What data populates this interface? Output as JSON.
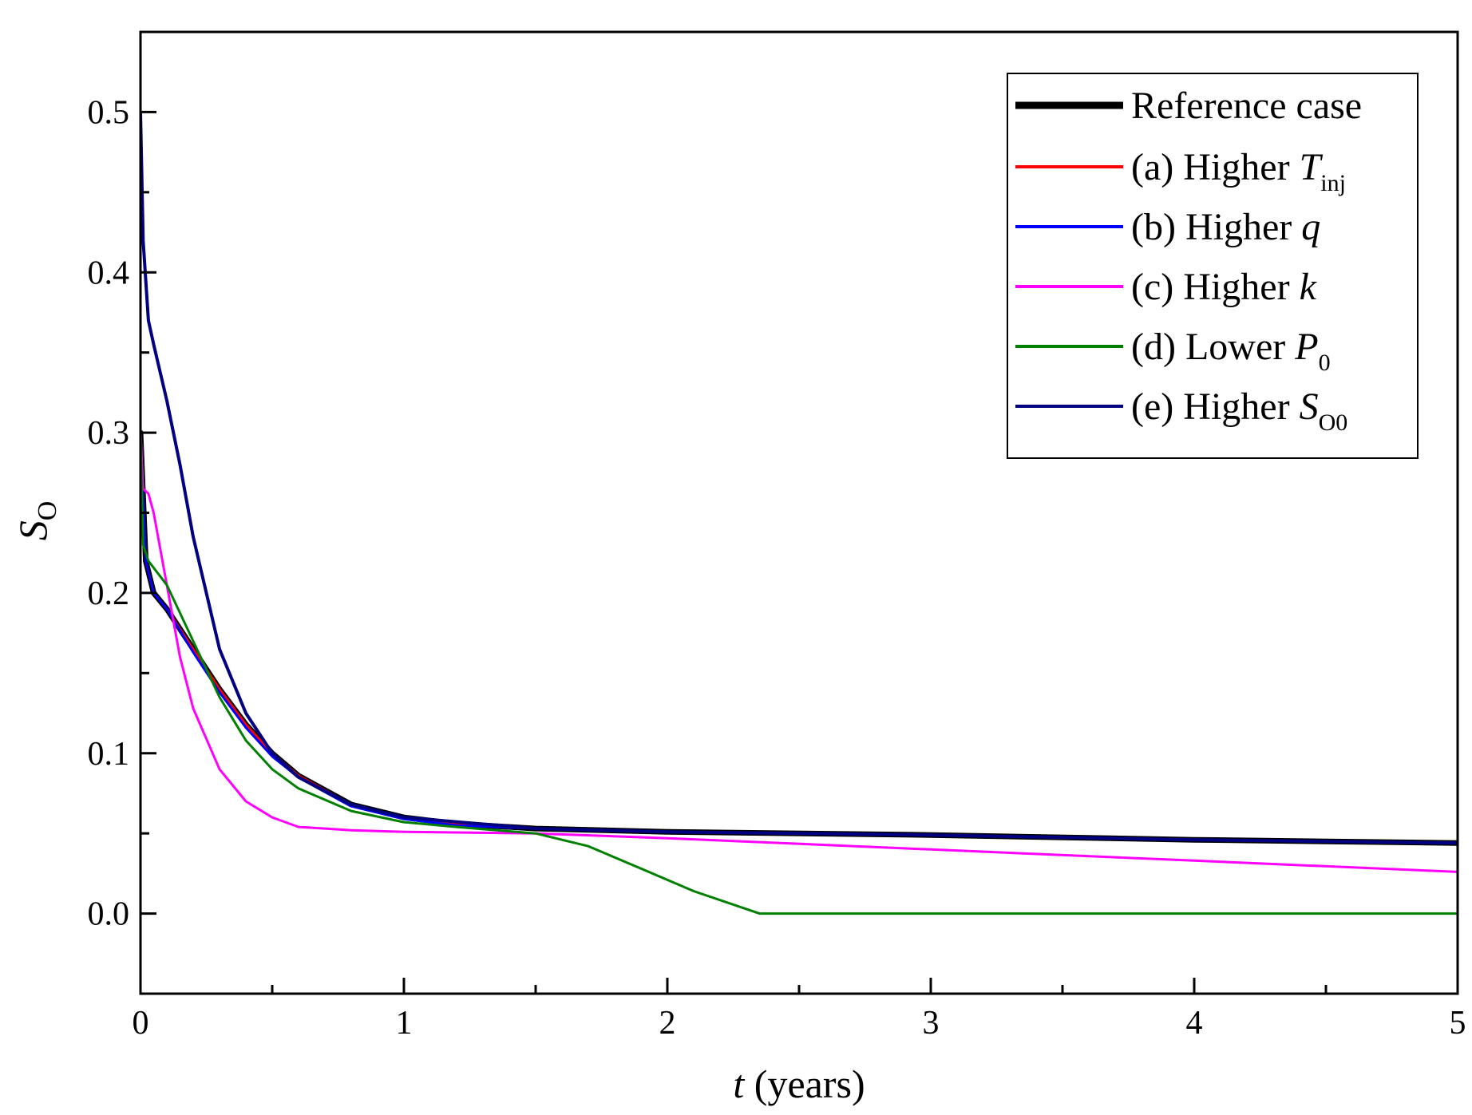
{
  "chart_data": {
    "type": "line",
    "title": "",
    "xlabel": {
      "italic": "t",
      "rest": " (years)"
    },
    "ylabel": {
      "main": "S",
      "sub": "O"
    },
    "xlim": [
      0,
      5
    ],
    "ylim": [
      -0.05,
      0.55
    ],
    "x_ticks": [
      0,
      1,
      2,
      3,
      4,
      5
    ],
    "x_tick_labels": [
      "0",
      "1",
      "2",
      "3",
      "4",
      "5"
    ],
    "x_minor_ticks": [
      0.5,
      1.5,
      2.5,
      3.5,
      4.5
    ],
    "y_ticks": [
      0.0,
      0.1,
      0.2,
      0.3,
      0.4,
      0.5
    ],
    "y_tick_labels": [
      "0.0",
      "0.1",
      "0.2",
      "0.3",
      "0.4",
      "0.5"
    ],
    "y_minor_ticks": [
      -0.05,
      0.05,
      0.15,
      0.25,
      0.35,
      0.45,
      0.55
    ],
    "grid": false,
    "legend_position": "top-right",
    "series": [
      {
        "name": "Reference case",
        "label": {
          "pre": "Reference case",
          "ital": "",
          "sub": ""
        },
        "color": "#000000",
        "width": 7,
        "x": [
          0,
          0.02,
          0.05,
          0.1,
          0.2,
          0.3,
          0.4,
          0.5,
          0.6,
          0.8,
          1.0,
          1.2,
          1.5,
          2,
          3,
          4,
          5
        ],
        "y": [
          0.3,
          0.22,
          0.2,
          0.19,
          0.165,
          0.14,
          0.118,
          0.1,
          0.086,
          0.068,
          0.06,
          0.056,
          0.053,
          0.051,
          0.049,
          0.046,
          0.044
        ]
      },
      {
        "name": "(a) Higher Tinj",
        "label": {
          "pre": "(a) Higher ",
          "ital": "T",
          "sub": "inj"
        },
        "color": "#ff0000",
        "width": 3,
        "x": [
          0,
          0.02,
          0.05,
          0.1,
          0.2,
          0.3,
          0.4,
          0.5,
          0.6,
          0.8,
          1.0,
          1.2,
          1.5,
          2,
          3,
          4,
          5
        ],
        "y": [
          0.3,
          0.22,
          0.2,
          0.19,
          0.165,
          0.14,
          0.118,
          0.1,
          0.086,
          0.068,
          0.06,
          0.056,
          0.053,
          0.051,
          0.049,
          0.046,
          0.044
        ]
      },
      {
        "name": "(b) Higher q",
        "label": {
          "pre": "(b) Higher ",
          "ital": "q",
          "sub": ""
        },
        "color": "#0000ff",
        "width": 3,
        "x": [
          0,
          0.02,
          0.05,
          0.1,
          0.2,
          0.3,
          0.4,
          0.5,
          0.6,
          0.8,
          1.0,
          1.2,
          1.5,
          2,
          3,
          4,
          5
        ],
        "y": [
          0.3,
          0.22,
          0.2,
          0.19,
          0.163,
          0.138,
          0.116,
          0.098,
          0.085,
          0.067,
          0.059,
          0.055,
          0.053,
          0.051,
          0.049,
          0.046,
          0.044
        ]
      },
      {
        "name": "(c) Higher k",
        "label": {
          "pre": "(c) Higher ",
          "ital": "k",
          "sub": ""
        },
        "color": "#ff00ff",
        "width": 3,
        "x": [
          0,
          0.01,
          0.03,
          0.05,
          0.1,
          0.15,
          0.2,
          0.3,
          0.4,
          0.5,
          0.6,
          0.7,
          0.8,
          1.0,
          1.5,
          2,
          3,
          4,
          5
        ],
        "y": [
          0.3,
          0.265,
          0.262,
          0.25,
          0.205,
          0.16,
          0.128,
          0.09,
          0.07,
          0.06,
          0.054,
          0.053,
          0.052,
          0.051,
          0.05,
          0.047,
          0.04,
          0.033,
          0.026
        ]
      },
      {
        "name": "(d) Lower P0",
        "label": {
          "pre": "(d) Lower ",
          "ital": "P",
          "sub": "0"
        },
        "color": "#008000",
        "width": 3,
        "x": [
          0,
          0.01,
          0.03,
          0.1,
          0.2,
          0.3,
          0.4,
          0.5,
          0.6,
          0.8,
          1.0,
          1.2,
          1.5,
          1.7,
          1.9,
          2.1,
          2.35,
          3,
          4,
          5
        ],
        "y": [
          0.3,
          0.23,
          0.22,
          0.205,
          0.17,
          0.135,
          0.108,
          0.09,
          0.078,
          0.064,
          0.057,
          0.054,
          0.05,
          0.042,
          0.028,
          0.014,
          0.0,
          0.0,
          0.0,
          0.0
        ]
      },
      {
        "name": "(e) Higher SO0",
        "label": {
          "pre": "(e) Higher ",
          "ital": "S",
          "sub": "O0"
        },
        "color": "#000080",
        "width": 4,
        "x": [
          0,
          0.01,
          0.03,
          0.05,
          0.1,
          0.15,
          0.2,
          0.3,
          0.4,
          0.5,
          0.6,
          0.8,
          1.0,
          1.5,
          2,
          3,
          4,
          5
        ],
        "y": [
          0.5,
          0.42,
          0.37,
          0.355,
          0.32,
          0.28,
          0.235,
          0.165,
          0.125,
          0.1,
          0.085,
          0.068,
          0.06,
          0.053,
          0.051,
          0.049,
          0.046,
          0.044
        ]
      }
    ]
  }
}
